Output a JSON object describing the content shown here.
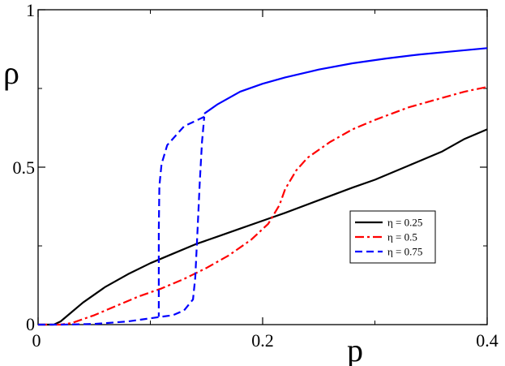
{
  "chart_data": {
    "type": "line",
    "xlabel": "p",
    "ylabel": "ρ",
    "xlim": [
      0,
      0.4
    ],
    "ylim": [
      0,
      1
    ],
    "x_ticks": [
      0,
      0.2,
      0.4
    ],
    "x_tick_labels": [
      "0",
      "0.2",
      "0.4"
    ],
    "y_ticks": [
      0,
      0.5,
      1
    ],
    "y_tick_labels": [
      "0",
      "0.5",
      "1"
    ],
    "grid": false,
    "legend_position": "lower-right",
    "series": [
      {
        "name": "η = 0.25",
        "color": "#000000",
        "style": "solid",
        "points": [
          [
            0,
            0
          ],
          [
            0.014,
            0
          ],
          [
            0.02,
            0.01
          ],
          [
            0.03,
            0.04
          ],
          [
            0.04,
            0.07
          ],
          [
            0.06,
            0.12
          ],
          [
            0.08,
            0.16
          ],
          [
            0.1,
            0.195
          ],
          [
            0.12,
            0.225
          ],
          [
            0.14,
            0.255
          ],
          [
            0.16,
            0.28
          ],
          [
            0.18,
            0.305
          ],
          [
            0.2,
            0.33
          ],
          [
            0.22,
            0.355
          ],
          [
            0.25,
            0.395
          ],
          [
            0.28,
            0.435
          ],
          [
            0.3,
            0.46
          ],
          [
            0.33,
            0.505
          ],
          [
            0.36,
            0.55
          ],
          [
            0.38,
            0.59
          ],
          [
            0.4,
            0.62
          ]
        ]
      },
      {
        "name": "η = 0.5",
        "color": "#ff0000",
        "style": "dashdot",
        "points": [
          [
            0,
            0
          ],
          [
            0.02,
            0
          ],
          [
            0.03,
            0.005
          ],
          [
            0.05,
            0.03
          ],
          [
            0.07,
            0.06
          ],
          [
            0.09,
            0.09
          ],
          [
            0.11,
            0.115
          ],
          [
            0.13,
            0.145
          ],
          [
            0.15,
            0.18
          ],
          [
            0.17,
            0.22
          ],
          [
            0.19,
            0.27
          ],
          [
            0.205,
            0.32
          ],
          [
            0.215,
            0.38
          ],
          [
            0.22,
            0.43
          ],
          [
            0.23,
            0.49
          ],
          [
            0.24,
            0.53
          ],
          [
            0.26,
            0.58
          ],
          [
            0.28,
            0.62
          ],
          [
            0.3,
            0.65
          ],
          [
            0.33,
            0.69
          ],
          [
            0.36,
            0.72
          ],
          [
            0.38,
            0.74
          ],
          [
            0.4,
            0.755
          ]
        ]
      },
      {
        "name": "η = 0.75",
        "color": "#0000ff",
        "style": "dashed",
        "points": [
          [
            0,
            0
          ],
          [
            0.02,
            0
          ],
          [
            0.05,
            0.002
          ],
          [
            0.08,
            0.01
          ],
          [
            0.1,
            0.02
          ],
          [
            0.11,
            0.025
          ],
          [
            0.12,
            0.03
          ],
          [
            0.13,
            0.045
          ],
          [
            0.138,
            0.08
          ],
          [
            0.14,
            0.15
          ],
          [
            0.142,
            0.3
          ],
          [
            0.144,
            0.45
          ],
          [
            0.146,
            0.58
          ],
          [
            0.148,
            0.66
          ]
        ]
      },
      {
        "name": "",
        "color": "#0000ff",
        "style": "dashed",
        "points": [
          [
            0.148,
            0.66
          ],
          [
            0.13,
            0.63
          ],
          [
            0.115,
            0.57
          ],
          [
            0.11,
            0.51
          ],
          [
            0.108,
            0.44
          ],
          [
            0.1075,
            0.3
          ],
          [
            0.1075,
            0.1
          ],
          [
            0.1075,
            0.025
          ]
        ]
      },
      {
        "name": "",
        "color": "#0000ff",
        "style": "solid",
        "points": [
          [
            0.148,
            0.67
          ],
          [
            0.16,
            0.7
          ],
          [
            0.18,
            0.74
          ],
          [
            0.2,
            0.765
          ],
          [
            0.22,
            0.785
          ],
          [
            0.25,
            0.81
          ],
          [
            0.28,
            0.83
          ],
          [
            0.31,
            0.845
          ],
          [
            0.34,
            0.858
          ],
          [
            0.37,
            0.868
          ],
          [
            0.4,
            0.878
          ]
        ]
      }
    ]
  }
}
